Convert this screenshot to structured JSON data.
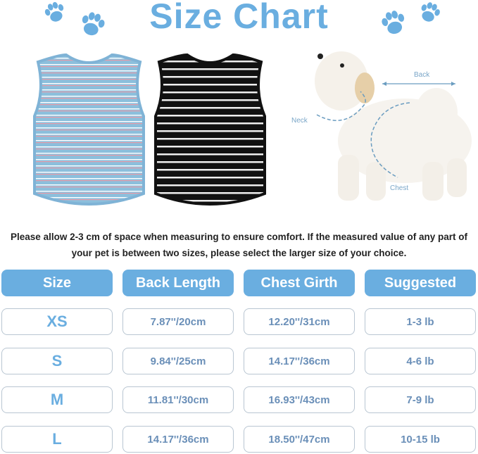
{
  "title": "Size Chart",
  "note": {
    "line1": "Please allow 2-3 cm of space when measuring to ensure comfort. If the measured value of any part of",
    "line2": "your pet is between two sizes, please select the larger size of your choice."
  },
  "diagram": {
    "back": "Back",
    "neck": "Neck",
    "chest": "Chest"
  },
  "table": {
    "headers": [
      "Size",
      "Back Length",
      "Chest Girth",
      "Suggested"
    ],
    "rows": [
      [
        "XS",
        "7.87''/20cm",
        "12.20''/31cm",
        "1-3 lb"
      ],
      [
        "S",
        "9.84''/25cm",
        "14.17''/36cm",
        "4-6 lb"
      ],
      [
        "M",
        "11.81''/30cm",
        "16.93''/43cm",
        "7-9 lb"
      ],
      [
        "L",
        "14.17''/36cm",
        "18.50''/47cm",
        "10-15 lb"
      ]
    ]
  },
  "colors": {
    "accent": "#6aaee0",
    "border": "#b9c6d2",
    "cell_text": "#6a8fb8"
  }
}
